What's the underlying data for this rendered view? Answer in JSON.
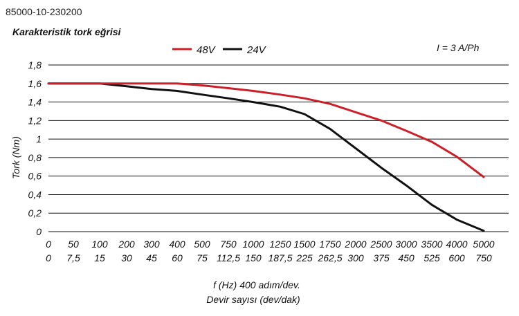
{
  "header": {
    "code": "85000-10-230200"
  },
  "chart_data": {
    "type": "line",
    "title": "Karakteristik tork eğrisi",
    "annotation": "I = 3 A/Ph",
    "xlabel": "f (Hz) 400 adım/dev.",
    "xlabel2": "Devir sayısı (dev/dak)",
    "ylabel": "Tork (Nm)",
    "ylim": [
      0,
      1.8
    ],
    "grid": true,
    "legend_position": "top",
    "categories": [
      "0",
      "50",
      "100",
      "200",
      "300",
      "400",
      "500",
      "750",
      "1000",
      "1250",
      "1500",
      "1750",
      "2000",
      "2500",
      "3000",
      "3500",
      "4000",
      "5000"
    ],
    "secondary_categories": [
      "0",
      "7,5",
      "15",
      "30",
      "45",
      "60",
      "75",
      "112,5",
      "150",
      "187,5",
      "225",
      "262,5",
      "300",
      "375",
      "450",
      "525",
      "600",
      "750"
    ],
    "y_ticks": [
      "0",
      "0,2",
      "0,4",
      "0,6",
      "0,8",
      "1",
      "1,2",
      "1,4",
      "1,6",
      "1,8"
    ],
    "series": [
      {
        "name": "48V",
        "color": "#cc1f27",
        "values": [
          1.6,
          1.6,
          1.6,
          1.6,
          1.6,
          1.6,
          1.58,
          1.55,
          1.52,
          1.48,
          1.44,
          1.38,
          1.29,
          1.2,
          1.09,
          0.97,
          0.81,
          0.59
        ]
      },
      {
        "name": "24V",
        "color": "#111111",
        "values": [
          1.6,
          1.6,
          1.6,
          1.57,
          1.54,
          1.52,
          1.48,
          1.44,
          1.4,
          1.35,
          1.27,
          1.11,
          0.9,
          0.69,
          0.5,
          0.29,
          0.13,
          0.01
        ]
      }
    ]
  }
}
